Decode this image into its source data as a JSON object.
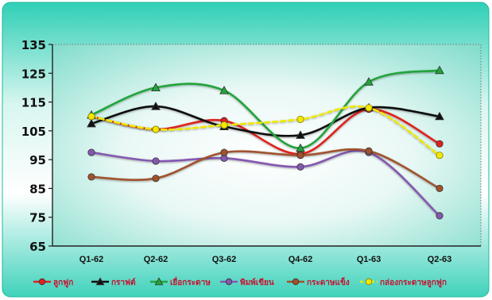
{
  "chart_data": {
    "type": "line",
    "categories": [
      "Q1-62",
      "Q2-62",
      "Q3-62",
      "Q4-62",
      "Q1-63",
      "Q2-63"
    ],
    "ylim": [
      65,
      135
    ],
    "yticks": [
      65,
      75,
      85,
      95,
      105,
      115,
      125,
      135
    ],
    "grid": false,
    "legend_placement": "bottom",
    "series": [
      {
        "name": "ลูกฟูก",
        "color": "#e0201f",
        "marker": "circle",
        "values": [
          110,
          105.5,
          108.5,
          97,
          112.5,
          100.5
        ]
      },
      {
        "name": "กราฟต์",
        "color": "#111111",
        "marker": "triangle",
        "values": [
          107.5,
          113.5,
          106.5,
          103.5,
          113,
          110
        ]
      },
      {
        "name": "เยื่อกระดาษ",
        "color": "#22a43a",
        "marker": "triangle",
        "values": [
          110.5,
          120,
          119,
          99,
          122,
          126
        ]
      },
      {
        "name": "พิมพ์เขียน",
        "color": "#8458b0",
        "marker": "circle",
        "values": [
          97.5,
          94.5,
          95.5,
          92.5,
          97.5,
          75.5
        ]
      },
      {
        "name": "กระดาษแข็ง",
        "color": "#a0522d",
        "marker": "circle",
        "values": [
          89,
          88.5,
          97.5,
          96.5,
          98,
          85
        ]
      },
      {
        "name": "กล่องกระดาษลูกฟูก",
        "color": "#f0e800",
        "marker": "circle",
        "dashed": true,
        "values": [
          110,
          105.5,
          107,
          109,
          113,
          96.5
        ]
      }
    ]
  }
}
